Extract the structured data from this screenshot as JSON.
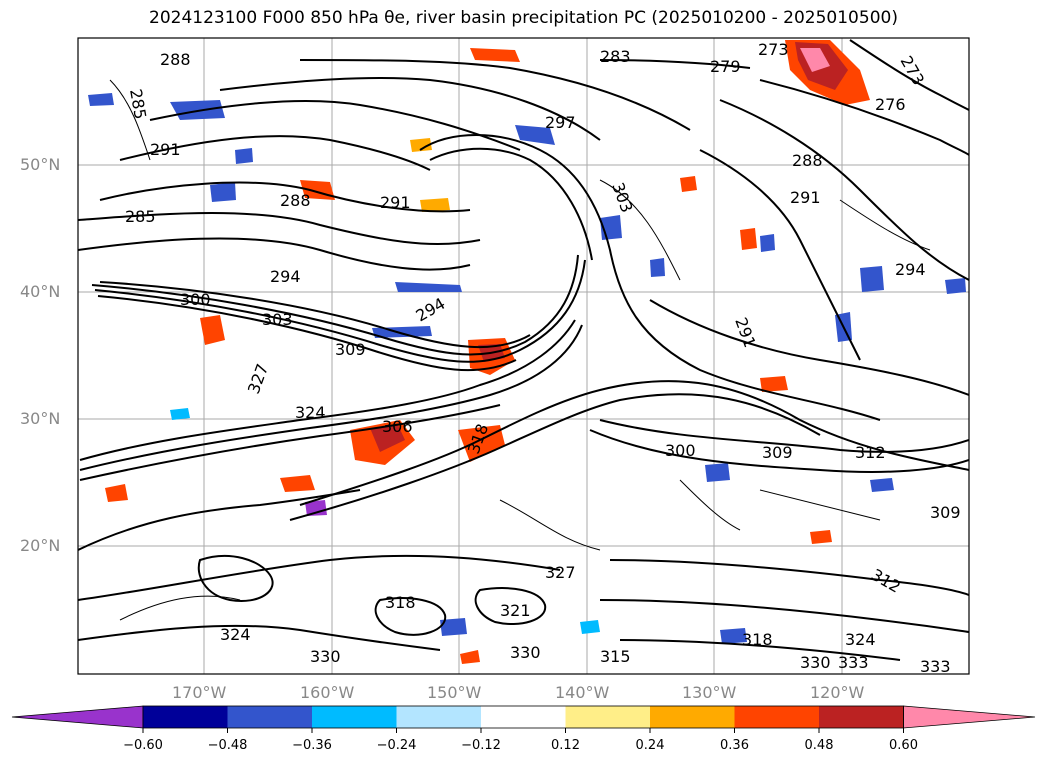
{
  "title": "2024123100 F000 850 hPa θe, river basin precipitation PC (2025010200 - 2025010500)",
  "map": {
    "lon_ticks": [
      "170°W",
      "160°W",
      "150°W",
      "140°W",
      "130°W",
      "120°W"
    ],
    "lat_ticks": [
      "50°N",
      "40°N",
      "30°N",
      "20°N"
    ],
    "contour_labels": [
      "285",
      "288",
      "291",
      "297",
      "303",
      "285",
      "288",
      "291",
      "294",
      "300",
      "303",
      "294",
      "309",
      "327",
      "324",
      "306",
      "318",
      "300",
      "309",
      "312",
      "291",
      "294",
      "288",
      "279",
      "283",
      "273",
      "276",
      "273",
      "291",
      "327",
      "318",
      "321",
      "324",
      "330",
      "333",
      "330",
      "315",
      "318",
      "324",
      "330",
      "333",
      "312",
      "309"
    ]
  },
  "colorbar": {
    "tick_labels": [
      "−0.60",
      "−0.48",
      "−0.36",
      "−0.24",
      "−0.12",
      "0.12",
      "0.24",
      "0.36",
      "0.48",
      "0.60"
    ],
    "colors": [
      "#9933cc",
      "#000099",
      "#3355cc",
      "#00bbff",
      "#b3e5ff",
      "#ffffff",
      "#ffee88",
      "#ffaa00",
      "#ff4400",
      "#bb2222",
      "#ff88aa"
    ]
  }
}
